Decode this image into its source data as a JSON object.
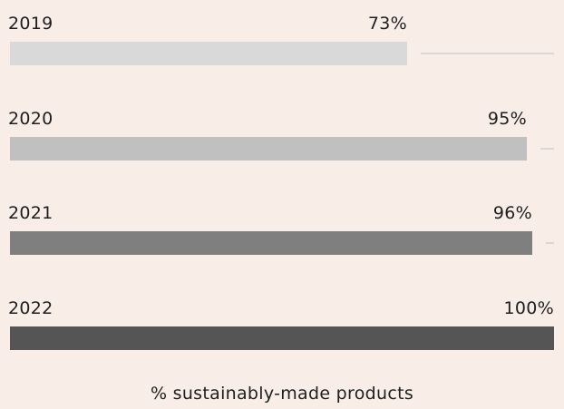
{
  "chart_data": {
    "type": "bar",
    "orientation": "horizontal",
    "categories": [
      "2019",
      "2020",
      "2021",
      "2022"
    ],
    "values": [
      73,
      95,
      96,
      100
    ],
    "value_labels": [
      "73%",
      "95%",
      "96%",
      "100%"
    ],
    "xlim": [
      0,
      100
    ],
    "bar_colors": [
      "#d9d9d9",
      "#c0c0c0",
      "#7f7f7f",
      "#555555"
    ],
    "track_color": "#dad7d4",
    "caption": "% sustainably-made products",
    "grid": false,
    "legend": "none"
  },
  "colors": {
    "background": "#f8eee7",
    "text": "#1e1e1e"
  }
}
